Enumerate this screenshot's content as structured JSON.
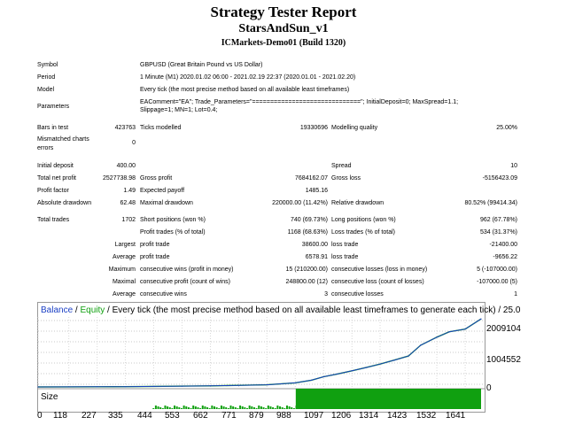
{
  "header": {
    "title": "Strategy Tester Report",
    "expert": "StarsAndSun_v1",
    "server": "ICMarkets-Demo01 (Build 1320)"
  },
  "settings": {
    "symbol_label": "Symbol",
    "symbol": "GBPUSD (Great Britain Pound vs US Dollar)",
    "period_label": "Period",
    "period": "1 Minute (M1) 2020.01.02 06:00 - 2021.02.19 22:37 (2020.01.01 - 2021.02.20)",
    "model_label": "Model",
    "model": "Every tick (the most precise method based on all available least timeframes)",
    "params_label": "Parameters",
    "params_line1": "EAComment=\"EA\"; Trade_Parameters=\"==============================\"; InitialDeposit=0; MaxSpread=1.1;",
    "params_line2": "Slippage=1; MN=1; Lot=0.4;"
  },
  "stats": {
    "bars_label": "Bars in test",
    "bars": "423763",
    "ticks_label": "Ticks modelled",
    "ticks": "19330696",
    "quality_label": "Modelling quality",
    "quality": "25.00%",
    "mismatch_label_1": "Mismatched charts",
    "mismatch_label_2": "errors",
    "mismatch": "0",
    "initial_label": "Initial deposit",
    "initial": "400.00",
    "spread_label": "Spread",
    "spread": "10",
    "net_label": "Total net profit",
    "net": "2527738.98",
    "gross_profit_label": "Gross profit",
    "gross_profit": "7684162.07",
    "gross_loss_label": "Gross loss",
    "gross_loss": "-5156423.09",
    "pf_label": "Profit factor",
    "pf": "1.49",
    "payoff_label": "Expected payoff",
    "payoff": "1485.16",
    "abs_dd_label": "Absolute drawdown",
    "abs_dd": "62.48",
    "max_dd_label": "Maximal drawdown",
    "max_dd": "220000.00 (11.42%)",
    "rel_dd_label": "Relative drawdown",
    "rel_dd": "80.52% (99414.34)",
    "trades_label": "Total trades",
    "trades": "1702",
    "short_label": "Short positions (won %)",
    "short": "740 (69.73%)",
    "long_label": "Long positions (won %)",
    "long": "962 (67.78%)",
    "pt_label": "Profit trades (% of total)",
    "pt": "1168 (68.63%)",
    "lt_label": "Loss trades (% of total)",
    "lt": "534 (31.37%)",
    "largest": "Largest",
    "profit_trade_label": "profit trade",
    "largest_profit": "38600.00",
    "loss_trade_label": "loss trade",
    "largest_loss": "-21400.00",
    "average": "Average",
    "avg_profit": "6578.91",
    "avg_loss": "-9656.22",
    "maximum": "Maximum",
    "max_wins_label": "consecutive wins (profit in money)",
    "max_wins": "15 (210200.00)",
    "max_losses_label": "consecutive losses (loss in money)",
    "max_losses": "5 (-107000.00)",
    "maximal": "Maximal",
    "max_cprofit_label": "consecutive profit (count of wins)",
    "max_cprofit": "248800.00 (12)",
    "max_closs_label": "consecutive loss (count of losses)",
    "max_closs": "-107000.00 (5)",
    "avg_wins_label": "consecutive wins",
    "avg_wins": "3",
    "avg_losses_label": "consecutive losses",
    "avg_losses": "1"
  },
  "chart": {
    "balance": "Balance",
    "slash": " / ",
    "equity": "Equity",
    "rest": " / Every tick (the most precise method based on all available least timeframes to generate each tick) / 25.0",
    "size_label": "Size",
    "y_ticks": [
      "2009104",
      "1004552",
      "0"
    ],
    "x_ticks": [
      "0",
      "118",
      "227",
      "335",
      "444",
      "553",
      "662",
      "771",
      "879",
      "988",
      "1097",
      "1206",
      "1314",
      "1423",
      "1532",
      "1641"
    ],
    "balance_color": "#1a3fc4",
    "equity_color": "#10a010"
  },
  "chart_data": {
    "type": "line",
    "title": "Balance / Equity / Every tick (the most precise method based on all available least timeframes to generate each tick) / 25.0",
    "xlabel": "",
    "ylabel": "",
    "ylim": [
      0,
      2600000
    ],
    "x_ticks": [
      0,
      118,
      227,
      335,
      444,
      553,
      662,
      771,
      879,
      988,
      1097,
      1206,
      1314,
      1423,
      1532,
      1641
    ],
    "y_ticks": [
      0,
      1004552,
      2009104
    ],
    "series": [
      {
        "name": "Balance",
        "x": [
          0,
          118,
          227,
          335,
          444,
          553,
          662,
          771,
          879,
          988,
          1050,
          1097,
          1150,
          1206,
          1260,
          1314,
          1370,
          1423,
          1470,
          1532,
          1580,
          1641,
          1702
        ],
        "values": [
          400,
          2000,
          5000,
          10000,
          20000,
          30000,
          40000,
          60000,
          80000,
          150000,
          250000,
          380000,
          480000,
          600000,
          720000,
          850000,
          1000000,
          1150000,
          1550000,
          1850000,
          2050000,
          2150000,
          2528139
        ]
      }
    ],
    "size_type": "bar",
    "size_x_range": [
      0,
      1702
    ],
    "size_phase_ranges": [
      [
        0,
        440,
        "none"
      ],
      [
        440,
        990,
        "small"
      ],
      [
        990,
        1702,
        "full"
      ]
    ]
  }
}
